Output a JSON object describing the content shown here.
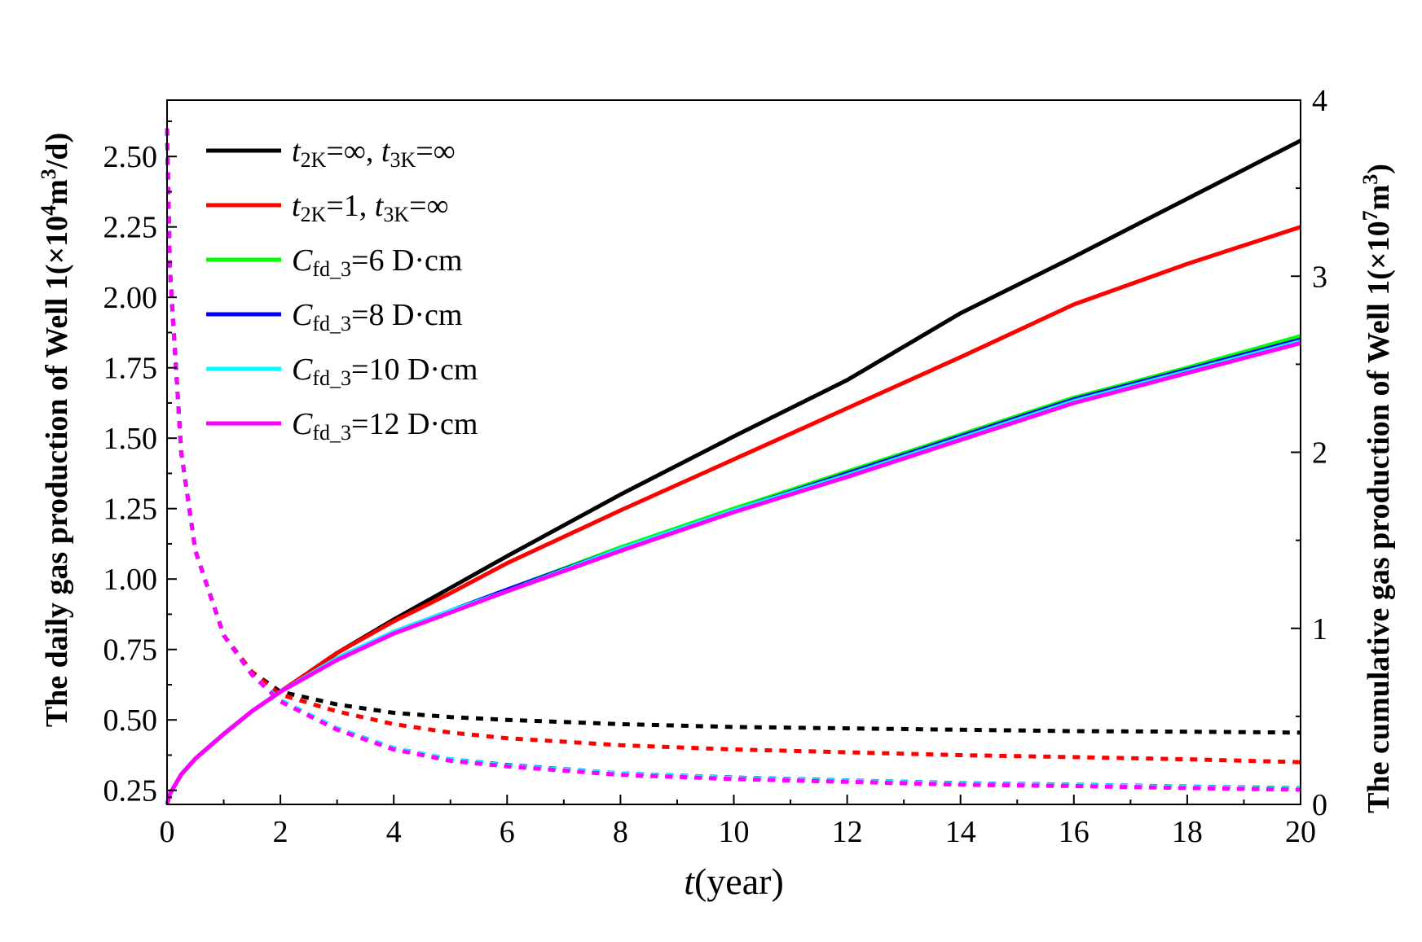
{
  "chart_data": {
    "type": "line",
    "xlabel": {
      "italic": "t",
      "text": "(year)"
    },
    "ylabel_left": {
      "prefix": "The daily gas production of Well 1(×10",
      "sup1": "4",
      "mid": "m",
      "sup2": "3",
      "suffix": "/d)"
    },
    "ylabel_right": {
      "prefix": "The cumulative gas production of Well 1(×10",
      "sup1": "7",
      "mid": "m",
      "sup2": "3",
      "suffix": ")"
    },
    "xlim": [
      0,
      20
    ],
    "ylim_left": [
      0.2,
      2.7
    ],
    "ylim_right": [
      0,
      4
    ],
    "x_ticks": [
      "0",
      "2",
      "4",
      "6",
      "8",
      "10",
      "12",
      "14",
      "16",
      "18",
      "20"
    ],
    "y_left_ticks": [
      "0.25",
      "0.50",
      "0.75",
      "1.00",
      "1.25",
      "1.50",
      "1.75",
      "2.00",
      "2.25",
      "2.50"
    ],
    "y_left_tick_values": [
      0.25,
      0.5,
      0.75,
      1.0,
      1.25,
      1.5,
      1.75,
      2.0,
      2.25,
      2.5
    ],
    "y_right_ticks": [
      "0",
      "1",
      "2",
      "3",
      "4"
    ],
    "y_right_tick_values": [
      0,
      1,
      2,
      3,
      4
    ],
    "x": [
      0,
      0.05,
      0.25,
      0.5,
      1,
      1.5,
      2,
      3,
      4,
      5,
      6,
      8,
      10,
      12,
      14,
      16,
      18,
      20
    ],
    "legend": [
      {
        "sym": "t",
        "sub": "2K",
        "eq": "=∞, ",
        "sym2": "t",
        "sub2": "3K",
        "eq2": "=∞"
      },
      {
        "sym": "t",
        "sub": "2K",
        "eq": "=1, ",
        "sym2": "t",
        "sub2": "3K",
        "eq2": "=∞"
      },
      {
        "sym": "C",
        "sub": "fd_3",
        "eq": "=6 D·cm"
      },
      {
        "sym": "C",
        "sub": "fd_3",
        "eq": "=8 D·cm"
      },
      {
        "sym": "C",
        "sub": "fd_3",
        "eq": "=10 D·cm"
      },
      {
        "sym": "C",
        "sub": "fd_3",
        "eq": "=12 D·cm"
      }
    ],
    "series": [
      {
        "name": "t2K=∞, t3K=∞",
        "color": "#000000",
        "daily": [
          2.6,
          2.1,
          1.45,
          1.1,
          0.8,
          0.67,
          0.6,
          0.555,
          0.525,
          0.51,
          0.5,
          0.485,
          0.475,
          0.47,
          0.465,
          0.46,
          0.458,
          0.455
        ],
        "cumulative": [
          0,
          0.06,
          0.17,
          0.26,
          0.4,
          0.53,
          0.64,
          0.86,
          1.05,
          1.23,
          1.41,
          1.76,
          2.09,
          2.41,
          2.79,
          3.11,
          3.44,
          3.77
        ]
      },
      {
        "name": "t2K=1, t3K=∞",
        "color": "#ff0000",
        "daily": [
          2.6,
          2.1,
          1.45,
          1.1,
          0.8,
          0.67,
          0.59,
          0.53,
          0.485,
          0.455,
          0.435,
          0.41,
          0.395,
          0.385,
          0.375,
          0.368,
          0.36,
          0.35
        ],
        "cumulative": [
          0,
          0.06,
          0.17,
          0.26,
          0.4,
          0.53,
          0.64,
          0.86,
          1.04,
          1.2,
          1.37,
          1.67,
          1.96,
          2.25,
          2.54,
          2.84,
          3.07,
          3.28
        ]
      },
      {
        "name": "Cfd_3=6 D·cm",
        "color": "#00ff00",
        "daily": [
          2.6,
          2.1,
          1.45,
          1.1,
          0.8,
          0.66,
          0.57,
          0.47,
          0.4,
          0.36,
          0.34,
          0.31,
          0.295,
          0.285,
          0.275,
          0.27,
          0.263,
          0.258
        ],
        "cumulative": [
          0,
          0.06,
          0.17,
          0.26,
          0.4,
          0.53,
          0.64,
          0.83,
          0.98,
          1.1,
          1.22,
          1.46,
          1.68,
          1.89,
          2.1,
          2.31,
          2.48,
          2.66
        ]
      },
      {
        "name": "Cfd_3=8 D·cm",
        "color": "#0000ff",
        "daily": [
          2.6,
          2.1,
          1.45,
          1.1,
          0.8,
          0.66,
          0.57,
          0.47,
          0.4,
          0.36,
          0.34,
          0.31,
          0.295,
          0.285,
          0.275,
          0.27,
          0.263,
          0.257
        ],
        "cumulative": [
          0,
          0.06,
          0.17,
          0.26,
          0.4,
          0.53,
          0.64,
          0.83,
          0.98,
          1.1,
          1.22,
          1.45,
          1.67,
          1.88,
          2.09,
          2.3,
          2.47,
          2.64
        ]
      },
      {
        "name": "Cfd_3=10 D·cm",
        "color": "#00ffff",
        "daily": [
          2.6,
          2.1,
          1.45,
          1.1,
          0.8,
          0.66,
          0.57,
          0.47,
          0.4,
          0.36,
          0.338,
          0.31,
          0.294,
          0.284,
          0.274,
          0.269,
          0.262,
          0.256
        ],
        "cumulative": [
          0,
          0.06,
          0.17,
          0.26,
          0.4,
          0.53,
          0.64,
          0.83,
          0.98,
          1.1,
          1.21,
          1.45,
          1.67,
          1.87,
          2.08,
          2.29,
          2.46,
          2.63
        ]
      },
      {
        "name": "Cfd_3=12 D·cm",
        "color": "#ff00ff",
        "daily": [
          2.6,
          2.1,
          1.45,
          1.1,
          0.8,
          0.66,
          0.565,
          0.465,
          0.395,
          0.355,
          0.335,
          0.305,
          0.29,
          0.28,
          0.27,
          0.265,
          0.258,
          0.252
        ],
        "cumulative": [
          0,
          0.06,
          0.17,
          0.26,
          0.4,
          0.53,
          0.64,
          0.82,
          0.97,
          1.09,
          1.21,
          1.44,
          1.66,
          1.86,
          2.07,
          2.28,
          2.45,
          2.62
        ]
      }
    ]
  }
}
